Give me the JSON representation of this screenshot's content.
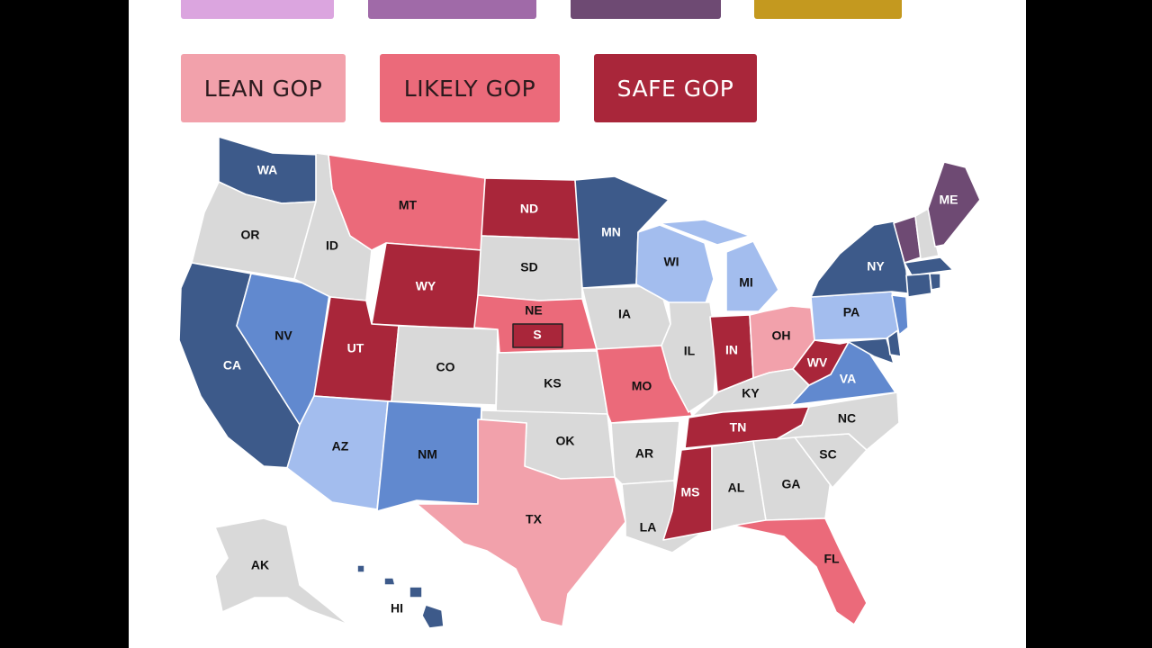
{
  "colors": {
    "tossup_top1": "#dba5df",
    "tossup_top2": "#a06aa8",
    "tossup_top3": "#6e4a73",
    "tossup_top4": "#c4991f",
    "lean_gop": "#f2a1ab",
    "likely_gop": "#eb6a7a",
    "safe_gop": "#a9263a",
    "safe_dem": "#3d5a8a",
    "likely_dem": "#6189cf",
    "lean_dem": "#a3bdee",
    "tossup": "#6e4a73",
    "none": "#d9d9d9"
  },
  "legend": {
    "lean_gop": "LEAN GOP",
    "likely_gop": "LIKELY GOP",
    "safe_gop": "SAFE GOP"
  },
  "states": {
    "WA": "WA",
    "OR": "OR",
    "CA": "CA",
    "NV": "NV",
    "ID": "ID",
    "MT": "MT",
    "WY": "WY",
    "UT": "UT",
    "AZ": "AZ",
    "CO": "CO",
    "NM": "NM",
    "ND": "ND",
    "SD": "SD",
    "NE": "NE",
    "NE_special": "S",
    "KS": "KS",
    "OK": "OK",
    "TX": "TX",
    "MN": "MN",
    "IA": "IA",
    "MO": "MO",
    "AR": "AR",
    "LA": "LA",
    "WI": "WI",
    "IL": "IL",
    "MI": "MI",
    "IN": "IN",
    "OH": "OH",
    "KY": "KY",
    "TN": "TN",
    "MS": "MS",
    "AL": "AL",
    "GA": "GA",
    "FL": "FL",
    "SC": "SC",
    "NC": "NC",
    "VA": "VA",
    "WV": "WV",
    "PA": "PA",
    "NY": "NY",
    "ME": "ME",
    "AK": "AK",
    "HI": "HI"
  }
}
